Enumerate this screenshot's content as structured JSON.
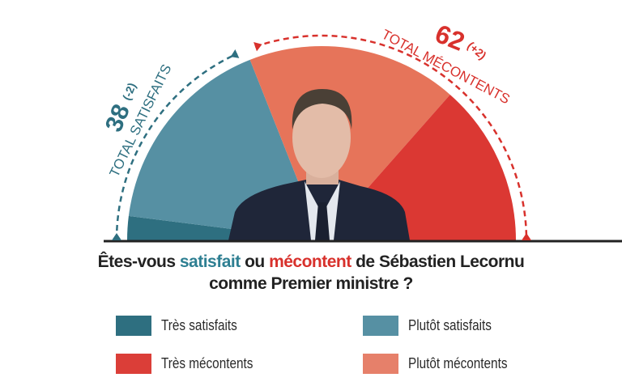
{
  "chart_data": {
    "type": "pie",
    "shape": "half-donut-semicircle",
    "title_parts": [
      "Êtes-vous ",
      "satisfait",
      " ou ",
      "mécontent",
      " de Sébastien Lecornu"
    ],
    "title_line2": "comme Premier ministre ?",
    "slices": [
      {
        "name": "Très satisfaits",
        "value": 4,
        "color": "#2e6f80"
      },
      {
        "name": "Plutôt satisfaits",
        "value": 34,
        "color": "#5690a3"
      },
      {
        "name": "Plutôt mécontents",
        "value": 35,
        "color": "#e6745a"
      },
      {
        "name": "Très mécontents",
        "value": 27,
        "color": "#db3833"
      }
    ],
    "totals": {
      "satisfied": {
        "label": "TOTAL SATISFAITS",
        "value": "38",
        "change": "(-2)",
        "color": "#2e6f80"
      },
      "unhappy": {
        "label": "TOTAL MÉCONTENTS",
        "value": "62",
        "change": "(+2)",
        "color": "#d8312c"
      }
    },
    "legend": {
      "placement": "bottom"
    },
    "photo": "portrait-of-sebastien-lecornu"
  }
}
